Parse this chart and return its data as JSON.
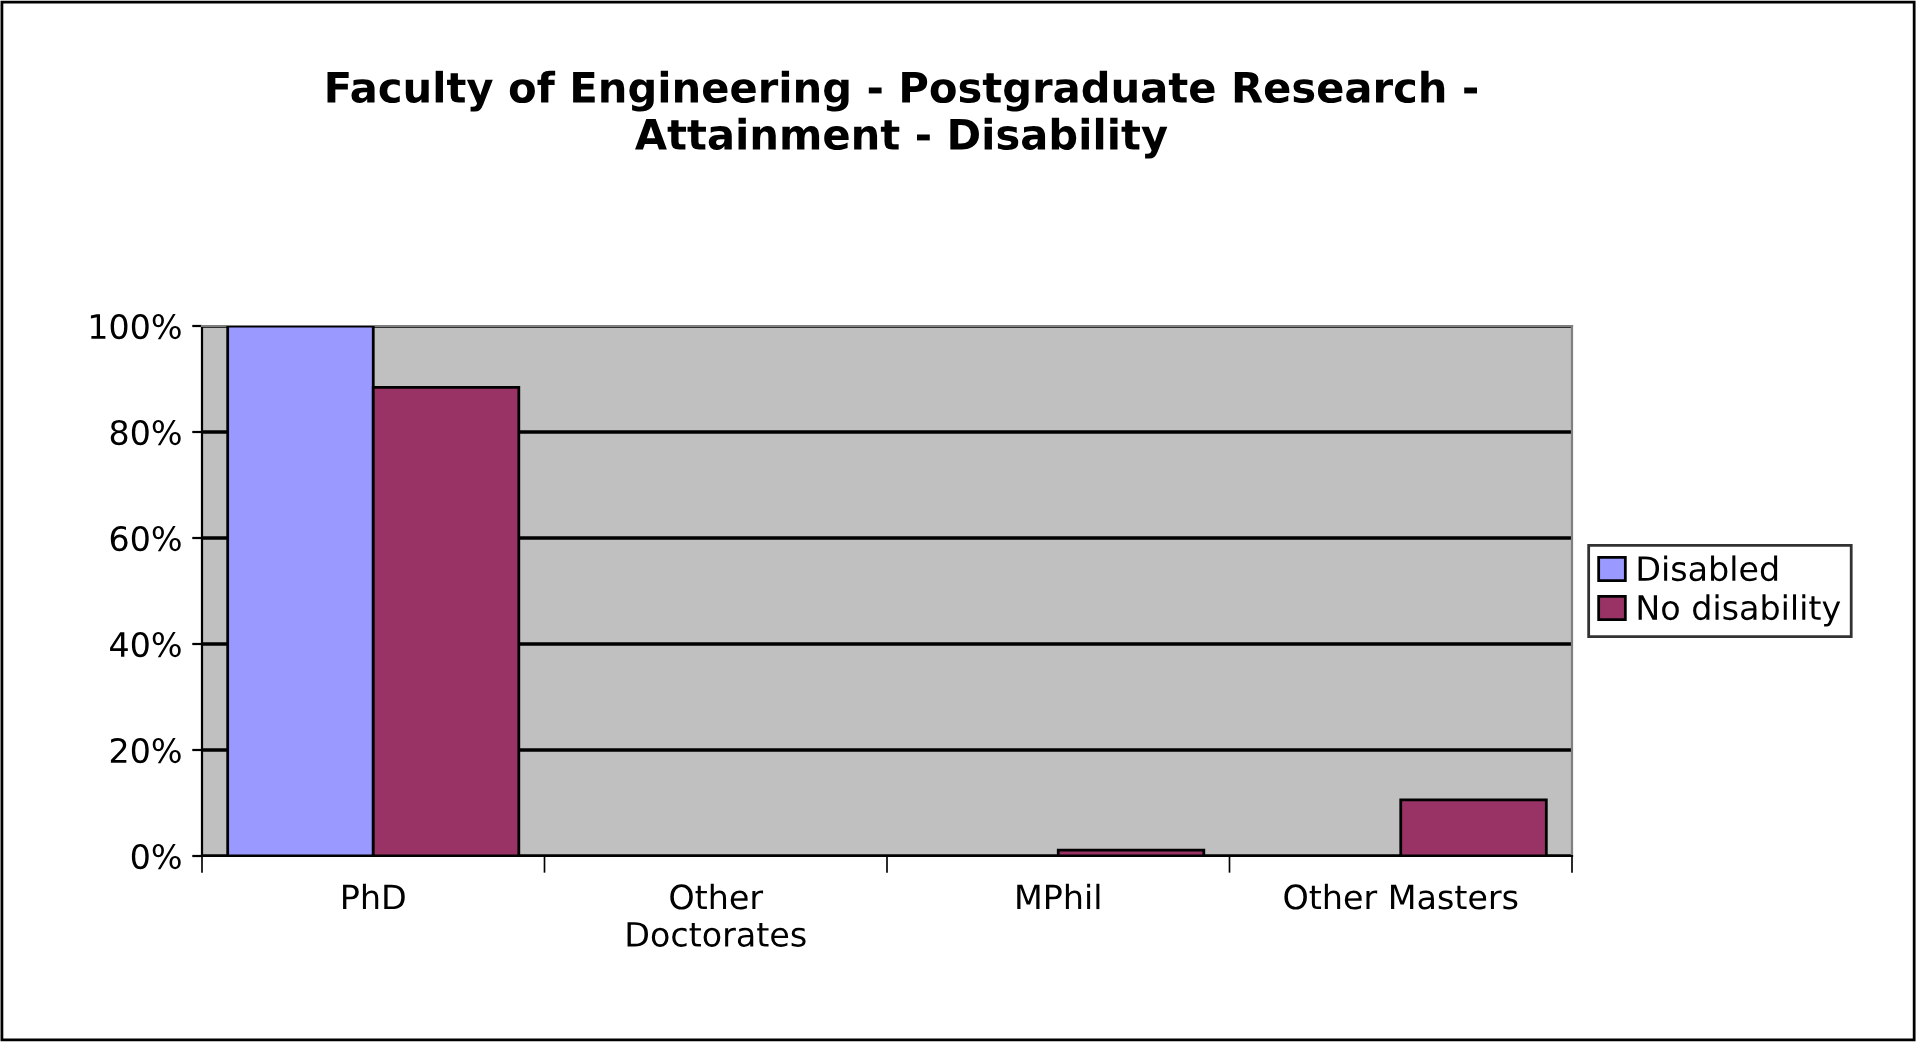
{
  "chart_data": {
    "type": "bar",
    "title": "Faculty of Engineering - Postgraduate Research -\nAttainment - Disability",
    "categories": [
      "PhD",
      "Other\nDoctorates",
      "MPhil",
      "Other Masters"
    ],
    "series": [
      {
        "name": "Disabled",
        "color": "#9999ff",
        "values": [
          100,
          0,
          0,
          0
        ]
      },
      {
        "name": "No disability",
        "color": "#993366",
        "values": [
          88.4,
          0,
          1.1,
          10.6
        ]
      }
    ],
    "ylim": [
      0,
      100
    ],
    "yticks": [
      {
        "value": 0,
        "label": "0%"
      },
      {
        "value": 20,
        "label": "20%"
      },
      {
        "value": 40,
        "label": "40%"
      },
      {
        "value": 60,
        "label": "60%"
      },
      {
        "value": 80,
        "label": "80%"
      },
      {
        "value": 100,
        "label": "100%"
      }
    ],
    "grid": "y",
    "legend": "right"
  }
}
